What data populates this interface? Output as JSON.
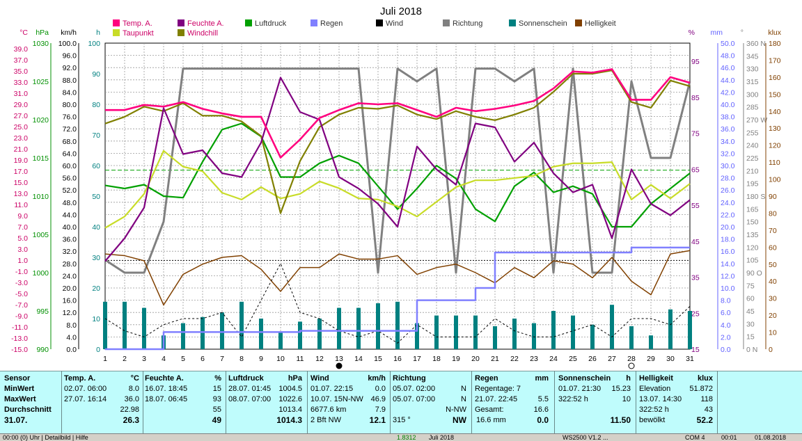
{
  "chart_data": {
    "type": "line",
    "title": "Juli 2018",
    "x": [
      1,
      2,
      3,
      4,
      5,
      6,
      7,
      8,
      9,
      10,
      11,
      12,
      13,
      14,
      15,
      16,
      17,
      18,
      19,
      20,
      21,
      22,
      23,
      24,
      25,
      26,
      27,
      28,
      29,
      30,
      31
    ],
    "legend": [
      {
        "key": "temp",
        "label": "Temp. A.",
        "color": "#ff007f"
      },
      {
        "key": "taupunkt",
        "label": "Taupunkt",
        "color": "#ff007f"
      },
      {
        "key": "feuchte",
        "label": "Feuchte A.",
        "color": "#800080"
      },
      {
        "key": "windchill",
        "label": "Windchill",
        "color": "#808000"
      },
      {
        "key": "luftdruck",
        "label": "Luftdruck",
        "color": "#00a000"
      },
      {
        "key": "regen",
        "label": "Regen",
        "color": "#8080ff"
      },
      {
        "key": "wind",
        "label": "Wind",
        "color": "#000000"
      },
      {
        "key": "richtung",
        "label": "Richtung",
        "color": "#808080"
      },
      {
        "key": "sonne",
        "label": "Sonnenschein",
        "color": "#008080"
      },
      {
        "key": "hell",
        "label": "Helligkeit",
        "color": "#804000"
      }
    ],
    "axes_left": [
      {
        "unit": "°C",
        "color": "#cc0066",
        "ticks": [
          "39.0",
          "37.0",
          "35.0",
          "33.0",
          "31.0",
          "29.0",
          "27.0",
          "25.0",
          "23.0",
          "21.0",
          "19.0",
          "17.0",
          "15.0",
          "13.0",
          "11.0",
          "9.0",
          "7.0",
          "5.0",
          "3.0",
          "1.0",
          "-1.0",
          "-3.0",
          "-5.0",
          "-7.0",
          "-9.0",
          "-11.0",
          "-13.0",
          "-15.0"
        ]
      },
      {
        "unit": "hPa",
        "color": "#009000",
        "ticks": [
          "1030",
          "1025",
          "1020",
          "1015",
          "1010",
          "1005",
          "1000",
          "995",
          "990"
        ]
      },
      {
        "unit": "km/h",
        "color": "#000000",
        "ticks": [
          "100.0",
          "96.0",
          "92.0",
          "88.0",
          "84.0",
          "80.0",
          "76.0",
          "72.0",
          "68.0",
          "64.0",
          "60.0",
          "56.0",
          "52.0",
          "48.0",
          "44.0",
          "40.0",
          "36.0",
          "32.0",
          "28.0",
          "24.0",
          "20.0",
          "16.0",
          "12.0",
          "8.0",
          "4.0",
          "0.0"
        ]
      },
      {
        "unit": "h",
        "color": "#008080",
        "ticks": [
          "100",
          "90",
          "80",
          "70",
          "60",
          "50",
          "40",
          "30",
          "20",
          "10",
          "0"
        ]
      }
    ],
    "axes_right": [
      {
        "unit": "%",
        "color": "#800080",
        "ticks": [
          "95",
          "85",
          "75",
          "65",
          "55",
          "45",
          "35",
          "25",
          "15"
        ]
      },
      {
        "unit": "mm",
        "color": "#6060ff",
        "ticks": [
          "50.0",
          "48.0",
          "46.0",
          "44.0",
          "42.0",
          "40.0",
          "38.0",
          "36.0",
          "34.0",
          "32.0",
          "30.0",
          "28.0",
          "26.0",
          "24.0",
          "22.0",
          "20.0",
          "18.0",
          "16.0",
          "14.0",
          "12.0",
          "10.0",
          "8.0",
          "6.0",
          "4.0",
          "2.0",
          "0.0"
        ]
      },
      {
        "unit": "°",
        "color": "#808080",
        "ticks": [
          "360 N",
          "345",
          "330",
          "315",
          "300",
          "285",
          "270 W",
          "255",
          "240",
          "225",
          "210",
          "195",
          "180 S",
          "165",
          "150",
          "135",
          "120",
          "105",
          "90 O",
          "75",
          "60",
          "45",
          "30",
          "15",
          "0 N"
        ]
      },
      {
        "unit": "klux",
        "color": "#804000",
        "ticks": [
          "180",
          "170",
          "160",
          "150",
          "140",
          "130",
          "120",
          "110",
          "100",
          "90",
          "80",
          "70",
          "60",
          "50",
          "40",
          "30",
          "20",
          "10",
          "0"
        ]
      }
    ],
    "ylim_left_celsius": [
      -15,
      39
    ],
    "series": {
      "temp": [
        27.2,
        27.2,
        28.1,
        27.8,
        28.6,
        27.4,
        26.6,
        26.0,
        26.0,
        18.8,
        22.0,
        25.8,
        27.2,
        28.4,
        28.2,
        28.4,
        27.2,
        26.0,
        27.6,
        27.0,
        27.4,
        28.0,
        28.8,
        31.0,
        34.0,
        33.8,
        34.4,
        29.0,
        29.0,
        33.0,
        32.0
      ],
      "taupunkt": [
        6.4,
        8.4,
        12.4,
        20.0,
        17.2,
        16.4,
        12.6,
        11.4,
        13.6,
        11.6,
        12.4,
        14.6,
        13.4,
        11.6,
        11.4,
        10.2,
        8.4,
        11.0,
        13.6,
        14.8,
        14.8,
        15.2,
        15.6,
        17.2,
        17.8,
        17.8,
        18.0,
        11.4,
        14.0,
        11.6,
        14.2
      ],
      "feuchte": [
        38,
        44,
        52,
        78,
        66,
        67,
        61,
        60,
        69,
        86,
        77,
        75,
        60,
        57,
        53,
        47,
        68,
        62,
        58,
        74,
        73,
        64,
        69,
        61,
        56,
        58,
        44,
        62,
        53,
        50,
        54
      ],
      "windchill": [
        24.8,
        26.0,
        27.8,
        27.0,
        28.4,
        26.2,
        26.2,
        25.2,
        22.6,
        9.0,
        18.2,
        24.2,
        26.4,
        27.6,
        27.4,
        28.0,
        26.4,
        25.6,
        27.0,
        26.0,
        25.4,
        26.4,
        27.6,
        30.4,
        33.6,
        33.6,
        34.2,
        28.6,
        27.6,
        32.4,
        31.4
      ],
      "luftdruck": [
        1011.4,
        1011.0,
        1011.5,
        1010.0,
        1009.8,
        1014.5,
        1018.7,
        1019.5,
        1017.8,
        1012.5,
        1012.5,
        1014.3,
        1015.3,
        1014.3,
        1011.3,
        1008.3,
        1011.0,
        1014.0,
        1012.3,
        1008.3,
        1006.7,
        1011.3,
        1013.1,
        1010.5,
        1011.3,
        1010.3,
        1006.0,
        1006.0,
        1009.0,
        1011.0,
        1013.0
      ],
      "regen": [
        0.0,
        0.0,
        0.0,
        2.8,
        2.8,
        2.8,
        2.8,
        2.8,
        2.8,
        2.8,
        3.0,
        3.0,
        3.0,
        3.0,
        3.0,
        3.0,
        8.0,
        8.0,
        8.0,
        10.0,
        15.8,
        15.8,
        15.8,
        15.8,
        15.8,
        15.8,
        15.8,
        16.6,
        16.6,
        16.6,
        16.6
      ],
      "wind": [
        10.0,
        6.0,
        4.0,
        8.0,
        10.0,
        10.0,
        12.0,
        4.0,
        16.0,
        28.0,
        12.0,
        10.0,
        6.0,
        4.0,
        6.0,
        2.0,
        8.0,
        4.0,
        4.0,
        4.0,
        10.0,
        6.0,
        4.0,
        4.0,
        6.0,
        8.0,
        4.0,
        10.0,
        10.0,
        8.0,
        14.0
      ],
      "richtung": [
        105,
        90,
        90,
        150,
        330,
        330,
        330,
        330,
        330,
        330,
        330,
        330,
        330,
        330,
        90,
        330,
        315,
        330,
        90,
        330,
        330,
        315,
        330,
        90,
        330,
        90,
        90,
        315,
        225,
        225,
        315
      ],
      "sonne": [
        15.5,
        15.5,
        13.5,
        4.5,
        8.5,
        10.5,
        12,
        15.5,
        10,
        5.5,
        9,
        10,
        13.5,
        13.5,
        15,
        15.5,
        8.5,
        11,
        11,
        11,
        7.5,
        10,
        8.5,
        12.5,
        11,
        8,
        14.5,
        7.5,
        4.5,
        13,
        12.5
      ],
      "hell": [
        56,
        55,
        52,
        26,
        44,
        50,
        54,
        55,
        47,
        34,
        48,
        48,
        56,
        53,
        53,
        55,
        44,
        48,
        50,
        45,
        39,
        48,
        42,
        52,
        50,
        42,
        54,
        40,
        32,
        56,
        58
      ]
    },
    "references": {
      "luftdruck_mean": 1013.4,
      "hell_mean": 52.2
    },
    "moon": [
      {
        "day": 13,
        "phase": "new"
      },
      {
        "day": 28,
        "phase": "full"
      }
    ],
    "x_ticks": [
      "1",
      "2",
      "3",
      "4",
      "5",
      "6",
      "7",
      "8",
      "9",
      "10",
      "11",
      "12",
      "13",
      "14",
      "15",
      "16",
      "17",
      "18",
      "19",
      "20",
      "21",
      "22",
      "23",
      "24",
      "25",
      "26",
      "27",
      "28",
      "29",
      "30",
      "31"
    ]
  },
  "stats": {
    "sensor": {
      "title": "Sensor",
      "rows": [
        "MinWert",
        "MaxWert",
        "Durchschnitt",
        "31.07."
      ]
    },
    "temp": {
      "title": "Temp. A.",
      "unit": "°C",
      "min_time": "02.07.  06:00",
      "min_val": "8.0",
      "max_time": "27.07.  16:14",
      "max_val": "36.0",
      "avg": "22.98",
      "today": "26.3"
    },
    "feuchte": {
      "title": "Feuchte A.",
      "unit": "%",
      "min_time": "16.07.  18:45",
      "min_val": "15",
      "max_time": "18.07.  06:45",
      "max_val": "93",
      "avg": "55",
      "today": "49"
    },
    "luftdruck": {
      "title": "Luftdruck",
      "unit": "hPa",
      "min_time": "28.07.  01:45",
      "min_val": "1004.5",
      "max_time": "08.07.  07:00",
      "max_val": "1022.6",
      "avg": "1013.4",
      "today": "1014.3"
    },
    "wind": {
      "title": "Wind",
      "unit": "km/h",
      "min_time": "01.07.  22:15",
      "min_val": "0.0",
      "max_time": "10.07.  15N-NW",
      "max_val": "46.9",
      "avg_label": "6677.6 km",
      "avg": "7.9",
      "today_label": "2 Bft NW",
      "today": "12.1"
    },
    "richtung": {
      "title": "Richtung",
      "min_time": "05.07.  02:00",
      "min_val": "N",
      "max_time": "05.07.  07:00",
      "max_val": "N",
      "avg": "N-NW",
      "today_label": "315 °",
      "today": "NW"
    },
    "regen": {
      "title": "Regen",
      "unit": "mm",
      "min_label": "Regentage: 7",
      "max_time": "21.07.  22:45",
      "max_val": "5.5",
      "avg_label": "Gesamt:",
      "avg": "16.6",
      "today_label": "16.6 mm",
      "today": "0.0"
    },
    "sonne": {
      "title": "Sonnenschein",
      "unit": "h",
      "min_time": "01.07.  21:30",
      "min_val": "15.23",
      "max_label": "322:52 h",
      "max_val": "10",
      "today": "11.50"
    },
    "hell": {
      "title": "Helligkeit",
      "unit": "klux",
      "min_label": "Elevation",
      "min_val": "51.872",
      "max_time": "13.07.  14:30",
      "max_val": "118",
      "avg_label": "322:52 h",
      "avg": "43",
      "today_label": "bewölkt",
      "today": "52.2"
    }
  },
  "statusbar": {
    "left": "00:00 (0) Uhr | Detailbild | Hilfe",
    "mid1": "1.8312",
    "mid2": "Juli 2018",
    "mid3": "WS2500 V1.2 ...",
    "mid4": "COM 4",
    "mid5": "00:01",
    "mid6": "01.08.2018"
  }
}
